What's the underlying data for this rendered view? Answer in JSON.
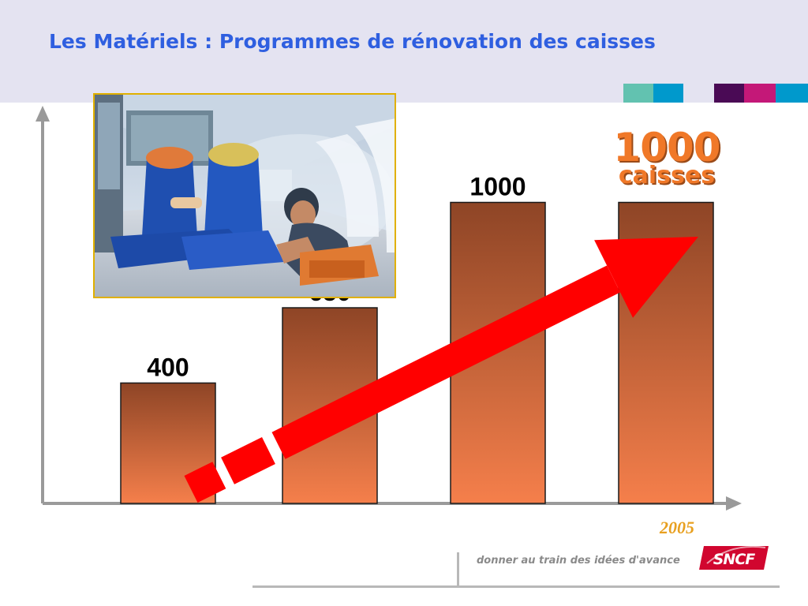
{
  "header": {
    "title": "Les Matériels : Programmes de rénovation des caisses",
    "blocks": [
      "#62c2b0",
      "#0099cc",
      "#4a0a55",
      "#c41878",
      "#0099cc"
    ]
  },
  "callout": {
    "number": "1000",
    "unit": "caisses"
  },
  "footer": {
    "year": "2005",
    "tagline": "donner au train des idées d'avance",
    "logo_text": "SNCF"
  },
  "chart_data": {
    "type": "bar",
    "categories": [
      "",
      "",
      "",
      ""
    ],
    "values": [
      400,
      650,
      1000,
      1000
    ],
    "labels": [
      "400",
      "650",
      "1000",
      ""
    ],
    "title": "",
    "xlabel": "",
    "ylabel": "",
    "ylim": [
      0,
      1250
    ],
    "grid": false,
    "legend": "none",
    "bar_gradient": [
      "#8e4526",
      "#f57f4b"
    ],
    "arrow_color": "#ff0000"
  }
}
